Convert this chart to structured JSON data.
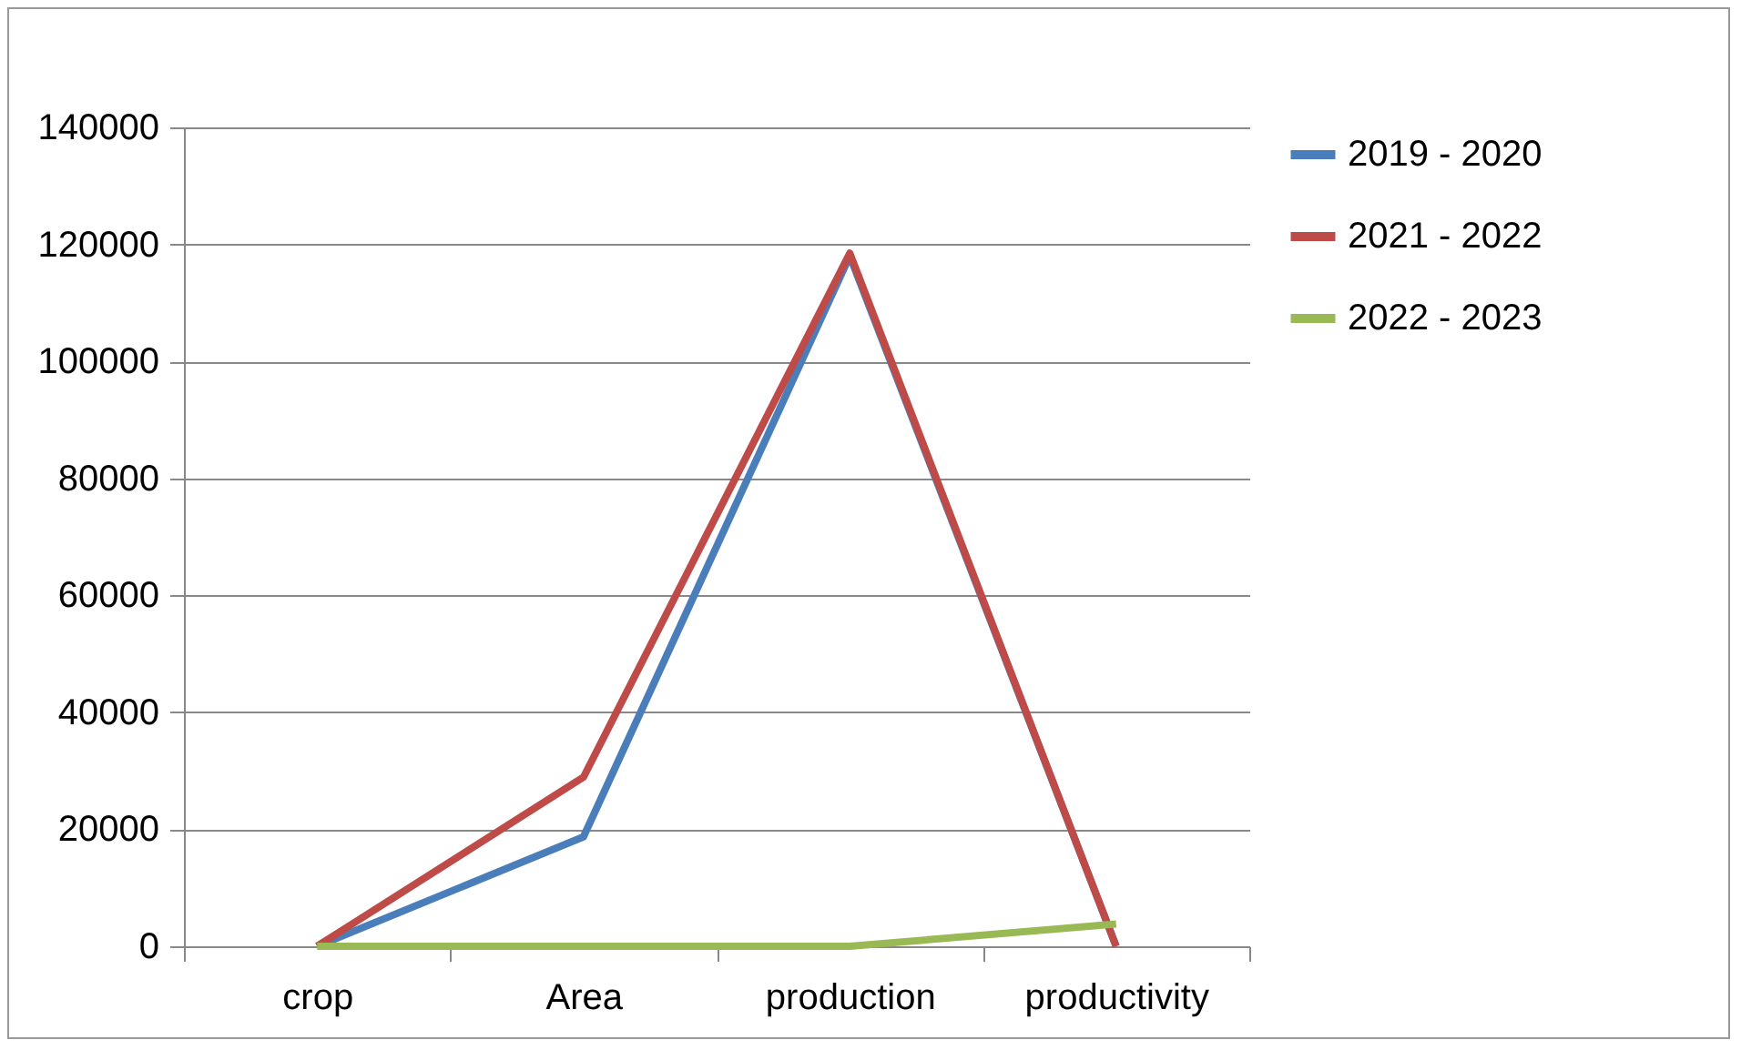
{
  "chart_data": {
    "type": "line",
    "categories": [
      "crop",
      "Area",
      "production",
      "productivity"
    ],
    "series": [
      {
        "name": "2019 - 2020",
        "color": "#4a7ebb",
        "values": [
          0,
          18700,
          118000,
          0
        ]
      },
      {
        "name": "2021 - 2022",
        "color": "#be4b48",
        "values": [
          0,
          28900,
          118500,
          0
        ]
      },
      {
        "name": "2022 - 2023",
        "color": "#98b954",
        "values": [
          0,
          0,
          0,
          3800
        ]
      }
    ],
    "ylim": [
      0,
      140000
    ],
    "yticks": [
      0,
      20000,
      40000,
      60000,
      80000,
      100000,
      120000,
      140000
    ],
    "grid": "y",
    "legend": "right",
    "marker": "none",
    "line_style": "solid"
  }
}
